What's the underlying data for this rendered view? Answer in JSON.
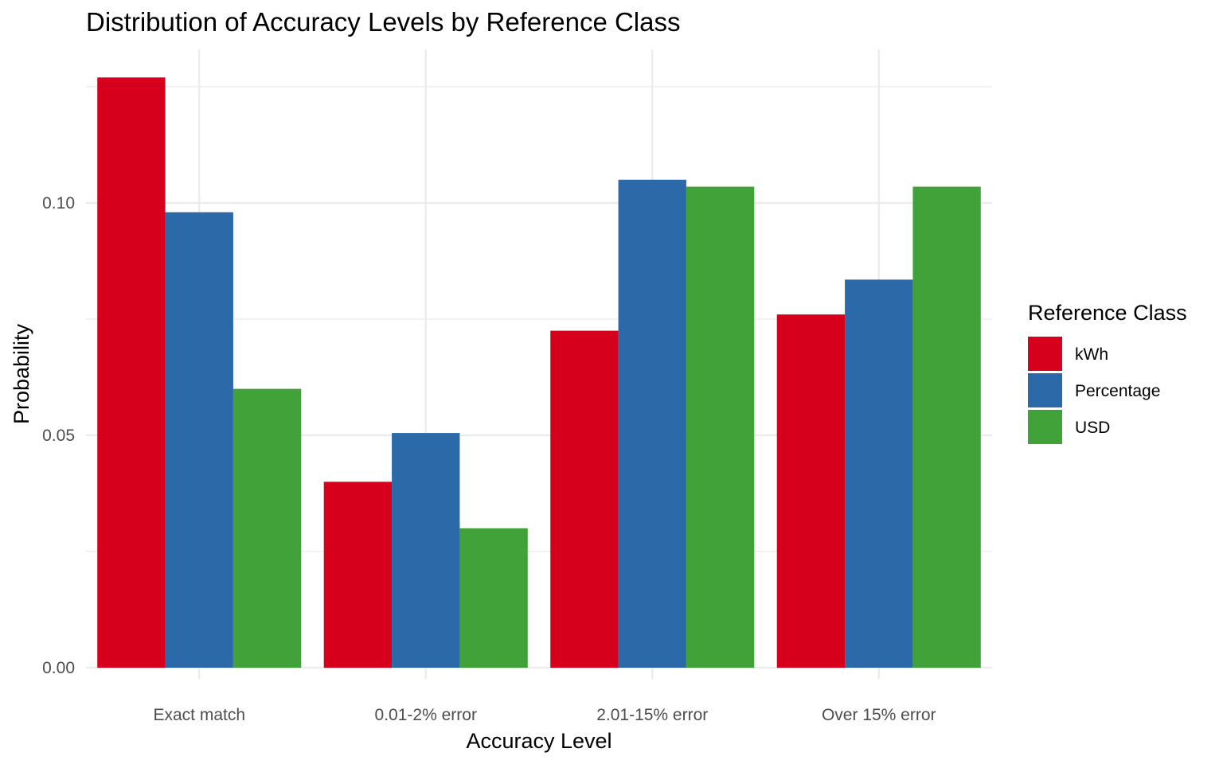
{
  "chart_data": {
    "type": "bar",
    "title": "Distribution of Accuracy Levels by Reference Class",
    "xlabel": "Accuracy Level",
    "ylabel": "Probability",
    "categories": [
      "Exact match",
      "0.01-2% error",
      "2.01-15% error",
      "Over 15% error"
    ],
    "series": [
      {
        "name": "kWh",
        "color": "#d7001c",
        "values": [
          0.127,
          0.04,
          0.0725,
          0.076
        ]
      },
      {
        "name": "Percentage",
        "color": "#2c69a8",
        "values": [
          0.098,
          0.0505,
          0.105,
          0.0835
        ]
      },
      {
        "name": "USD",
        "color": "#41a23a",
        "values": [
          0.06,
          0.03,
          0.1035,
          0.1035
        ]
      }
    ],
    "ylim": [
      0,
      0.127
    ],
    "y_ticks": [
      {
        "value": 0.0,
        "label": "0.00"
      },
      {
        "value": 0.05,
        "label": "0.05"
      },
      {
        "value": 0.1,
        "label": "0.10"
      }
    ],
    "y_minor_ticks": [
      0.025,
      0.075,
      0.125
    ],
    "grid": true,
    "legend": {
      "title": "Reference Class",
      "position": "right"
    }
  }
}
